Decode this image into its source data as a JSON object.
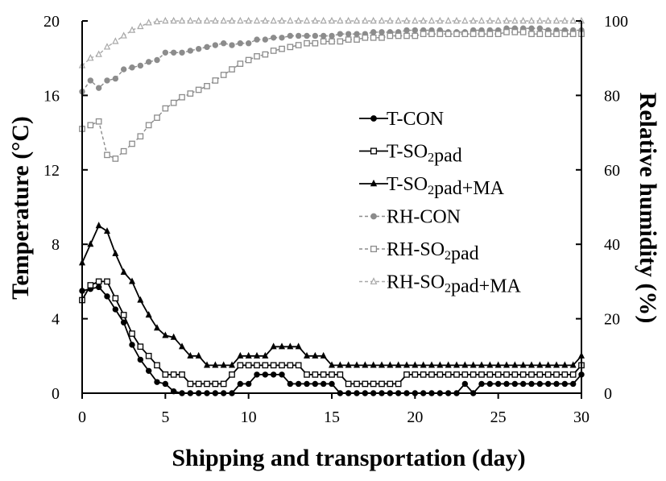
{
  "chart_data": {
    "type": "line",
    "title": "",
    "xlabel": "Shipping and transportation (day)",
    "ylabel_left": "Temperature (°C)",
    "ylabel_right": "Relative humidity (%)",
    "xlim": [
      0,
      30
    ],
    "ylim_left": [
      0,
      20
    ],
    "ylim_right": [
      0,
      100
    ],
    "x_ticks": [
      "0",
      "5",
      "10",
      "15",
      "20",
      "25",
      "30"
    ],
    "y_ticks_left": [
      "0",
      "4",
      "8",
      "12",
      "16",
      "20"
    ],
    "y_ticks_right": [
      "0",
      "20",
      "40",
      "60",
      "80",
      "100"
    ],
    "grid": false,
    "legend_position": "center-right",
    "series": [
      {
        "name": "T-CON",
        "axis": "left",
        "marker": "filled-circle",
        "color": "#000000",
        "dash": "",
        "x": [
          0,
          0.5,
          1,
          1.5,
          2,
          2.5,
          3,
          3.5,
          4,
          4.5,
          5,
          5.5,
          6,
          6.5,
          7,
          7.5,
          8,
          8.5,
          9,
          9.5,
          10,
          10.5,
          11,
          11.5,
          12,
          12.5,
          13,
          13.5,
          14,
          14.5,
          15,
          15.5,
          16,
          16.5,
          17,
          17.5,
          18,
          18.5,
          19,
          19.5,
          20,
          20.5,
          21,
          21.5,
          22,
          22.5,
          23,
          23.5,
          24,
          24.5,
          25,
          25.5,
          26,
          26.5,
          27,
          27.5,
          28,
          28.5,
          29,
          29.5,
          30
        ],
        "y": [
          5.5,
          5.6,
          5.7,
          5.2,
          4.5,
          3.8,
          2.6,
          1.8,
          1.2,
          0.6,
          0.5,
          0.1,
          0,
          0,
          0,
          0,
          0,
          0,
          0,
          0.5,
          0.5,
          1,
          1,
          1,
          1,
          0.5,
          0.5,
          0.5,
          0.5,
          0.5,
          0.5,
          0,
          0,
          0,
          0,
          0,
          0,
          0,
          0,
          0,
          0,
          0,
          0,
          0,
          0,
          0,
          0.5,
          0,
          0.5,
          0.5,
          0.5,
          0.5,
          0.5,
          0.5,
          0.5,
          0.5,
          0.5,
          0.5,
          0.5,
          0.5,
          1
        ]
      },
      {
        "name": "T-SO2pad",
        "axis": "left",
        "marker": "open-square",
        "color": "#000000",
        "dash": "",
        "x": [
          0,
          0.5,
          1,
          1.5,
          2,
          2.5,
          3,
          3.5,
          4,
          4.5,
          5,
          5.5,
          6,
          6.5,
          7,
          7.5,
          8,
          8.5,
          9,
          9.5,
          10,
          10.5,
          11,
          11.5,
          12,
          12.5,
          13,
          13.5,
          14,
          14.5,
          15,
          15.5,
          16,
          16.5,
          17,
          17.5,
          18,
          18.5,
          19,
          19.5,
          20,
          20.5,
          21,
          21.5,
          22,
          22.5,
          23,
          23.5,
          24,
          24.5,
          25,
          25.5,
          26,
          26.5,
          27,
          27.5,
          28,
          28.5,
          29,
          29.5,
          30
        ],
        "y": [
          5,
          5.8,
          6,
          6,
          5.1,
          4.2,
          3.2,
          2.5,
          2,
          1.5,
          1,
          1,
          1,
          0.5,
          0.5,
          0.5,
          0.5,
          0.5,
          1,
          1.5,
          1.5,
          1.5,
          1.5,
          1.5,
          1.5,
          1.5,
          1.5,
          1,
          1,
          1,
          1,
          1,
          0.5,
          0.5,
          0.5,
          0.5,
          0.5,
          0.5,
          0.5,
          1,
          1,
          1,
          1,
          1,
          1,
          1,
          1,
          1,
          1,
          1,
          1,
          1,
          1,
          1,
          1,
          1,
          1,
          1,
          1,
          1,
          1.5
        ]
      },
      {
        "name": "T-SO2pad+MA",
        "axis": "left",
        "marker": "filled-triangle",
        "color": "#000000",
        "dash": "",
        "x": [
          0,
          0.5,
          1,
          1.5,
          2,
          2.5,
          3,
          3.5,
          4,
          4.5,
          5,
          5.5,
          6,
          6.5,
          7,
          7.5,
          8,
          8.5,
          9,
          9.5,
          10,
          10.5,
          11,
          11.5,
          12,
          12.5,
          13,
          13.5,
          14,
          14.5,
          15,
          15.5,
          16,
          16.5,
          17,
          17.5,
          18,
          18.5,
          19,
          19.5,
          20,
          20.5,
          21,
          21.5,
          22,
          22.5,
          23,
          23.5,
          24,
          24.5,
          25,
          25.5,
          26,
          26.5,
          27,
          27.5,
          28,
          28.5,
          29,
          29.5,
          30
        ],
        "y": [
          7,
          8,
          9,
          8.7,
          7.5,
          6.5,
          6,
          5,
          4.2,
          3.5,
          3.1,
          3,
          2.5,
          2,
          2,
          1.5,
          1.5,
          1.5,
          1.5,
          2,
          2,
          2,
          2,
          2.5,
          2.5,
          2.5,
          2.5,
          2,
          2,
          2,
          1.5,
          1.5,
          1.5,
          1.5,
          1.5,
          1.5,
          1.5,
          1.5,
          1.5,
          1.5,
          1.5,
          1.5,
          1.5,
          1.5,
          1.5,
          1.5,
          1.5,
          1.5,
          1.5,
          1.5,
          1.5,
          1.5,
          1.5,
          1.5,
          1.5,
          1.5,
          1.5,
          1.5,
          1.5,
          1.5,
          2
        ]
      },
      {
        "name": "RH-CON",
        "axis": "right",
        "marker": "filled-circle",
        "color": "#8c8c8c",
        "dash": "4 3",
        "x": [
          0,
          0.5,
          1,
          1.5,
          2,
          2.5,
          3,
          3.5,
          4,
          4.5,
          5,
          5.5,
          6,
          6.5,
          7,
          7.5,
          8,
          8.5,
          9,
          9.5,
          10,
          10.5,
          11,
          11.5,
          12,
          12.5,
          13,
          13.5,
          14,
          14.5,
          15,
          15.5,
          16,
          16.5,
          17,
          17.5,
          18,
          18.5,
          19,
          19.5,
          20,
          20.5,
          21,
          21.5,
          22,
          22.5,
          23,
          23.5,
          24,
          24.5,
          25,
          25.5,
          26,
          26.5,
          27,
          27.5,
          28,
          28.5,
          29,
          29.5,
          30
        ],
        "y": [
          81,
          84,
          82,
          84,
          84.5,
          87,
          87.5,
          88,
          89,
          89.5,
          91.5,
          91.5,
          91.5,
          92,
          92.5,
          93,
          93.5,
          94,
          93.5,
          94,
          94,
          95,
          95,
          95.5,
          95.5,
          96,
          96,
          96,
          96,
          96,
          96,
          96.5,
          96.5,
          96.5,
          96.5,
          97,
          97,
          97,
          97,
          97.5,
          97.5,
          97.5,
          97.5,
          97.5,
          97,
          97,
          97,
          97.5,
          97.5,
          97.5,
          97.5,
          98,
          98,
          98,
          98,
          98,
          97.5,
          97.5,
          97.5,
          97.5,
          97.5
        ]
      },
      {
        "name": "RH-SO2pad",
        "axis": "right",
        "marker": "open-square",
        "color": "#8c8c8c",
        "dash": "4 3",
        "x": [
          0,
          0.5,
          1,
          1.5,
          2,
          2.5,
          3,
          3.5,
          4,
          4.5,
          5,
          5.5,
          6,
          6.5,
          7,
          7.5,
          8,
          8.5,
          9,
          9.5,
          10,
          10.5,
          11,
          11.5,
          12,
          12.5,
          13,
          13.5,
          14,
          14.5,
          15,
          15.5,
          16,
          16.5,
          17,
          17.5,
          18,
          18.5,
          19,
          19.5,
          20,
          20.5,
          21,
          21.5,
          22,
          22.5,
          23,
          23.5,
          24,
          24.5,
          25,
          25.5,
          26,
          26.5,
          27,
          27.5,
          28,
          28.5,
          29,
          29.5,
          30
        ],
        "y": [
          71,
          72,
          73,
          64,
          63,
          65,
          67,
          69,
          72,
          74,
          76.5,
          78,
          79.5,
          80.5,
          81.5,
          82.5,
          84,
          85.5,
          87,
          88.5,
          89.5,
          90.5,
          91,
          92,
          92.5,
          93,
          93.5,
          94,
          94,
          94.5,
          94.5,
          94.5,
          95,
          95,
          95.5,
          95.5,
          95.5,
          96,
          96,
          96,
          96,
          96.5,
          96.5,
          96.5,
          96.5,
          96.5,
          96.5,
          96.5,
          96.5,
          96.5,
          96.5,
          97,
          97,
          97,
          96.5,
          96.5,
          96.5,
          96.5,
          96.5,
          96.5,
          96.5
        ]
      },
      {
        "name": "RH-SO2pad+MA",
        "axis": "right",
        "marker": "open-triangle",
        "color": "#a8a8a8",
        "dash": "4 3",
        "x": [
          0,
          0.5,
          1,
          1.5,
          2,
          2.5,
          3,
          3.5,
          4,
          4.5,
          5,
          5.5,
          6,
          6.5,
          7,
          7.5,
          8,
          8.5,
          9,
          9.5,
          10,
          10.5,
          11,
          11.5,
          12,
          12.5,
          13,
          13.5,
          14,
          14.5,
          15,
          15.5,
          16,
          16.5,
          17,
          17.5,
          18,
          18.5,
          19,
          19.5,
          20,
          20.5,
          21,
          21.5,
          22,
          22.5,
          23,
          23.5,
          24,
          24.5,
          25,
          25.5,
          26,
          26.5,
          27,
          27.5,
          28,
          28.5,
          29,
          29.5,
          30
        ],
        "y": [
          88,
          90,
          91,
          93,
          94.5,
          96,
          97.5,
          98.5,
          99.5,
          99.8,
          100,
          100,
          100,
          100,
          100,
          100,
          100,
          100,
          100,
          100,
          100,
          100,
          100,
          100,
          100,
          100,
          100,
          100,
          100,
          100,
          100,
          100,
          100,
          100,
          100,
          100,
          100,
          100,
          100,
          100,
          100,
          100,
          100,
          100,
          100,
          100,
          100,
          100,
          100,
          100,
          100,
          100,
          100,
          100,
          100,
          100,
          100,
          100,
          100,
          100,
          100
        ]
      }
    ]
  }
}
